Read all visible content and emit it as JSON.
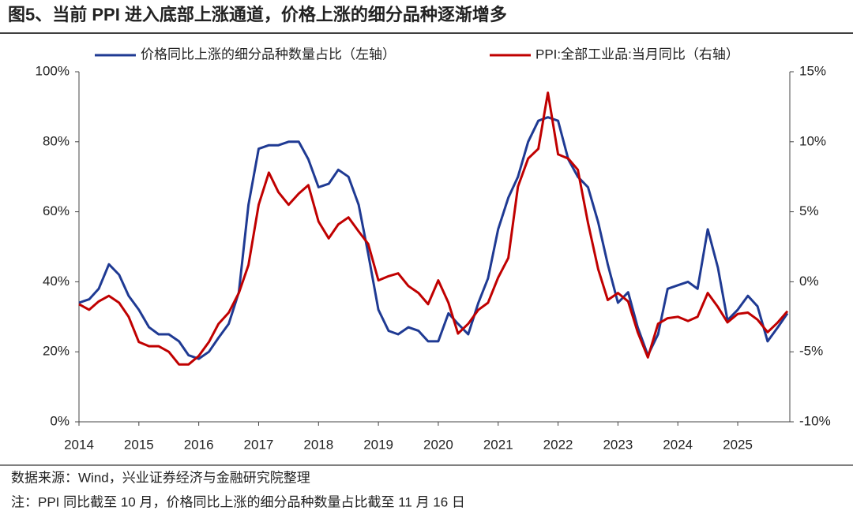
{
  "chart_data": {
    "type": "line",
    "title": "图5、当前 PPI 进入底部上涨通道，价格上涨的细分品种逐渐增多",
    "source": "数据来源：Wind，兴业证券经济与金融研究院整理",
    "note": "注：PPI 同比截至 10 月，价格同比上涨的细分品种数量占比截至 11 月 16 日",
    "x": [
      2014.0,
      2014.17,
      2014.33,
      2014.5,
      2014.67,
      2014.83,
      2015.0,
      2015.17,
      2015.33,
      2015.5,
      2015.67,
      2015.83,
      2016.0,
      2016.17,
      2016.33,
      2016.5,
      2016.67,
      2016.83,
      2017.0,
      2017.17,
      2017.33,
      2017.5,
      2017.67,
      2017.83,
      2018.0,
      2018.17,
      2018.33,
      2018.5,
      2018.67,
      2018.83,
      2019.0,
      2019.17,
      2019.33,
      2019.5,
      2019.67,
      2019.83,
      2020.0,
      2020.17,
      2020.33,
      2020.5,
      2020.67,
      2020.83,
      2021.0,
      2021.17,
      2021.33,
      2021.5,
      2021.67,
      2021.83,
      2022.0,
      2022.17,
      2022.33,
      2022.5,
      2022.67,
      2022.83,
      2023.0,
      2023.17,
      2023.33,
      2023.5,
      2023.67,
      2023.83,
      2024.0,
      2024.17,
      2024.33,
      2024.5,
      2024.67,
      2024.83,
      2025.0,
      2025.17,
      2025.33,
      2025.5,
      2025.67,
      2025.83
    ],
    "series": [
      {
        "name": "价格同比上涨的细分品种数量占比（左轴）",
        "color": "#1f3a93",
        "axis": "y",
        "values": [
          34,
          35,
          38,
          45,
          42,
          36,
          32,
          27,
          25,
          25,
          23,
          19,
          18,
          20,
          24,
          28,
          37,
          62,
          78,
          79,
          79,
          80,
          80,
          75,
          67,
          68,
          72,
          70,
          62,
          48,
          32,
          26,
          25,
          27,
          26,
          23,
          23,
          31,
          28,
          25,
          34,
          41,
          55,
          64,
          70,
          80,
          86,
          87,
          86,
          75,
          70,
          67,
          57,
          45,
          34,
          37,
          27,
          19,
          25,
          38,
          39,
          40,
          38,
          55,
          44,
          29,
          32,
          36,
          33,
          23,
          27,
          31
        ]
      },
      {
        "name": "PPI:全部工业品:当月同比（右轴）",
        "color": "#c00000",
        "axis": "y2",
        "values": [
          -1.6,
          -2.0,
          -1.4,
          -1.0,
          -1.5,
          -2.5,
          -4.3,
          -4.6,
          -4.6,
          -5.0,
          -5.9,
          -5.9,
          -5.3,
          -4.3,
          -3.0,
          -2.2,
          -0.8,
          1.2,
          5.5,
          7.8,
          6.4,
          5.5,
          6.3,
          6.9,
          4.3,
          3.1,
          4.1,
          4.6,
          3.6,
          2.7,
          0.1,
          0.4,
          0.6,
          -0.3,
          -0.8,
          -1.6,
          0.1,
          -1.5,
          -3.7,
          -3.0,
          -2.0,
          -1.5,
          0.3,
          1.7,
          6.8,
          8.8,
          9.5,
          13.5,
          9.1,
          8.8,
          8.0,
          4.2,
          0.9,
          -1.3,
          -0.8,
          -1.4,
          -3.6,
          -5.4,
          -3.0,
          -2.6,
          -2.5,
          -2.8,
          -2.5,
          -0.8,
          -1.8,
          -2.9,
          -2.3,
          -2.2,
          -2.7,
          -3.6,
          -2.9,
          -2.1
        ]
      }
    ],
    "xlim": [
      2014,
      2025.87
    ],
    "xticks": [
      2014,
      2015,
      2016,
      2017,
      2018,
      2019,
      2020,
      2021,
      2022,
      2023,
      2024,
      2025
    ],
    "ylim": [
      0,
      100
    ],
    "yticks": [
      {
        "value": 0,
        "label": "0%"
      },
      {
        "value": 20,
        "label": "20%"
      },
      {
        "value": 40,
        "label": "40%"
      },
      {
        "value": 60,
        "label": "60%"
      },
      {
        "value": 80,
        "label": "80%"
      },
      {
        "value": 100,
        "label": "100%"
      }
    ],
    "y2lim": [
      -10,
      15
    ],
    "y2ticks": [
      {
        "value": -10,
        "label": "-10%"
      },
      {
        "value": -5,
        "label": "-5%"
      },
      {
        "value": 0,
        "label": "0%"
      },
      {
        "value": 5,
        "label": "5%"
      },
      {
        "value": 10,
        "label": "10%"
      },
      {
        "value": 15,
        "label": "15%"
      }
    ],
    "grid": false
  }
}
